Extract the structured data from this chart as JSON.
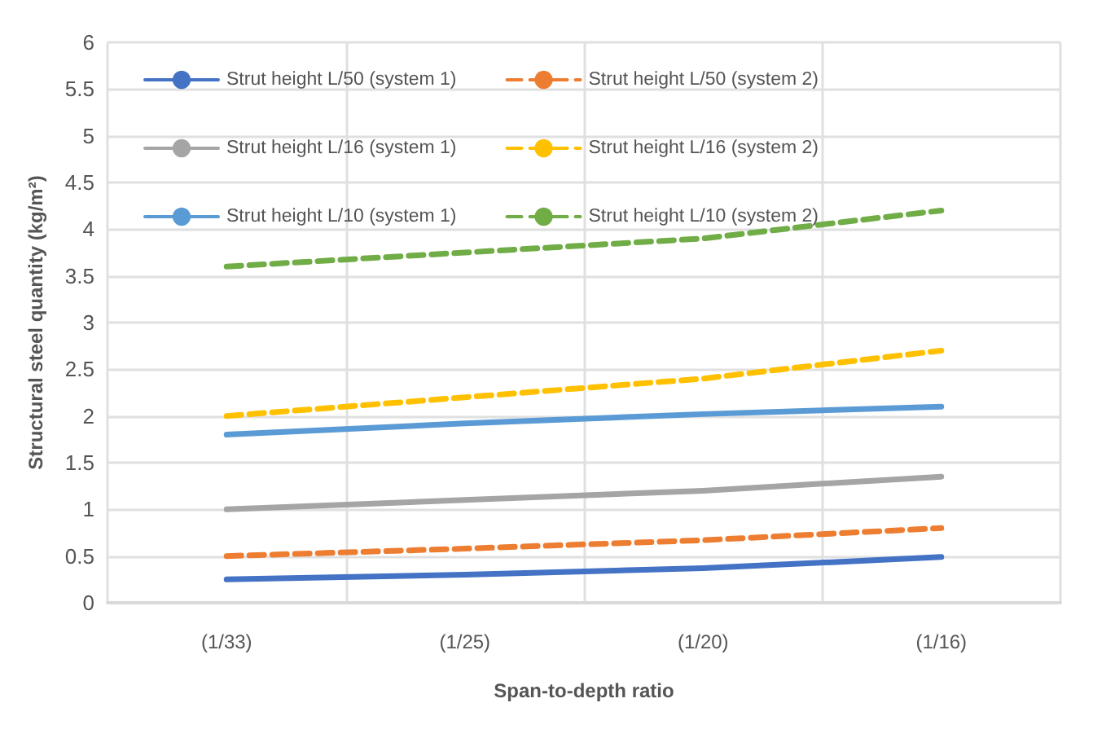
{
  "chart_data": {
    "type": "line",
    "xlabel": "Span-to-depth ratio",
    "ylabel": "Structural steel quantity (kg/m²)",
    "categories": [
      "(1/33)",
      "(1/25)",
      "(1/20)",
      "(1/16)"
    ],
    "series": [
      {
        "name": "Strut height L/50 (system 1)",
        "color": "#4472c4",
        "line_style": "solid",
        "values": [
          0.25,
          0.3,
          0.37,
          0.49
        ]
      },
      {
        "name": "Strut height L/50 (system 2)",
        "color": "#ed7d31",
        "line_style": "dashed",
        "values": [
          0.5,
          0.58,
          0.67,
          0.8
        ]
      },
      {
        "name": "Strut height L/16 (system 1)",
        "color": "#a5a5a5",
        "line_style": "solid",
        "values": [
          1.0,
          1.1,
          1.2,
          1.35
        ]
      },
      {
        "name": "Strut height L/16 (system 2)",
        "color": "#ffc000",
        "line_style": "dashed",
        "values": [
          2.0,
          2.2,
          2.4,
          2.7
        ]
      },
      {
        "name": "Strut height L/10 (system 1)",
        "color": "#5b9bd5",
        "line_style": "solid",
        "values": [
          1.8,
          1.92,
          2.02,
          2.1
        ]
      },
      {
        "name": "Strut height L/10 (system 2)",
        "color": "#70ad47",
        "line_style": "dashed",
        "values": [
          3.6,
          3.75,
          3.9,
          4.2
        ]
      }
    ],
    "ylim": [
      0,
      6
    ],
    "yticks": [
      0,
      0.5,
      1,
      1.5,
      2,
      2.5,
      3,
      3.5,
      4,
      4.5,
      5,
      5.5,
      6
    ],
    "grid": true,
    "legend": "top left",
    "marker": "none"
  }
}
